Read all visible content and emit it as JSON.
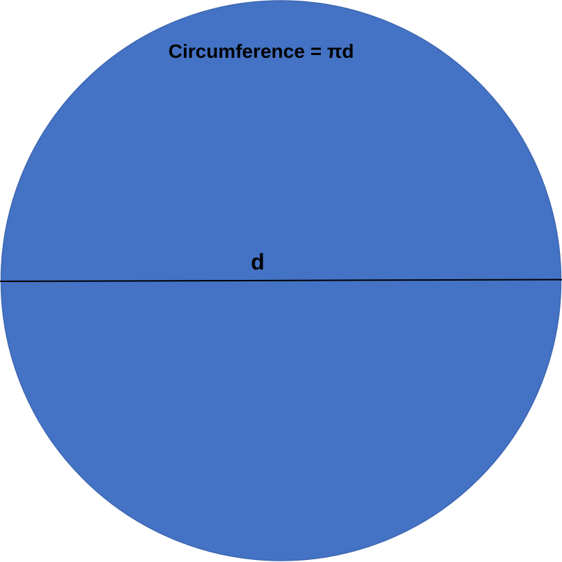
{
  "diagram": {
    "circumference_label": "Circumference = πd",
    "diameter_label": "d",
    "colors": {
      "circle_fill": "#4472C4",
      "circle_stroke": "#3E67B1",
      "diameter_line": "#000000",
      "text": "#000000"
    }
  }
}
